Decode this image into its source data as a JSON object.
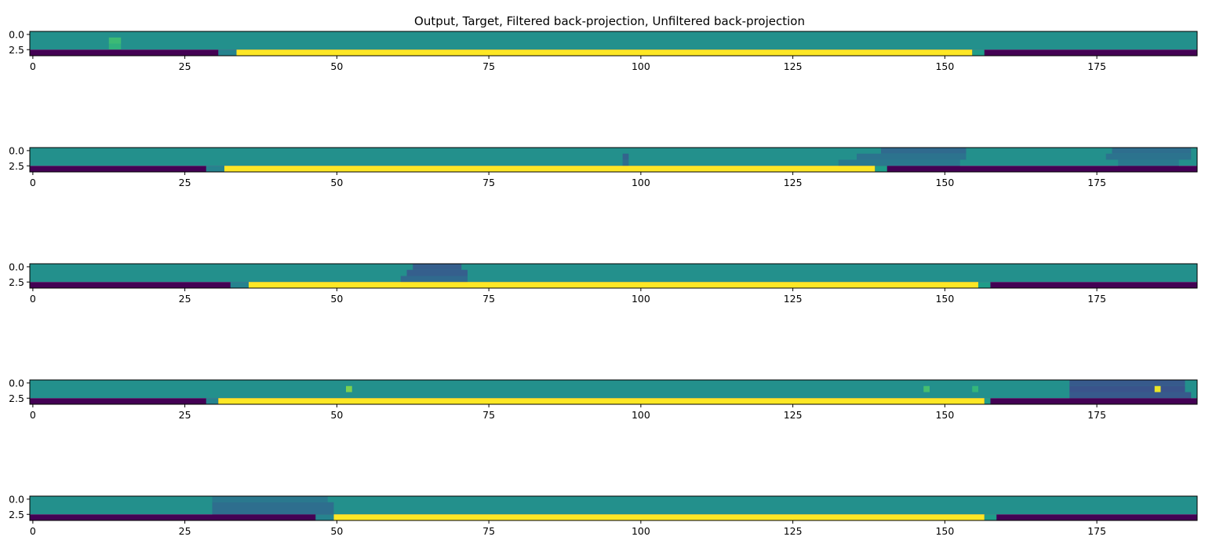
{
  "figure": {
    "title": "Output, Target, Filtered back-projection, Unfiltered back-projection"
  },
  "chart_data": {
    "type": "heatmap",
    "colormap": "viridis",
    "value_range": [
      0,
      1
    ],
    "background_value": 0.5,
    "row_labels": [
      "Output",
      "Target",
      "Filtered back-projection",
      "Unfiltered back-projection"
    ],
    "panels": [
      {
        "xlim": [
          -0.5,
          191.5
        ],
        "ylim": [
          3.5,
          -0.5
        ],
        "xticks": [
          0,
          25,
          50,
          75,
          100,
          125,
          150,
          175
        ],
        "xtick_labels": [
          "0",
          "25",
          "50",
          "75",
          "100",
          "125",
          "150",
          "175"
        ],
        "yticks": [
          0.0,
          2.5
        ],
        "ytick_labels": [
          "0.0",
          "2.5"
        ],
        "features": [
          {
            "row": 1,
            "x": [
              12.5,
              14.5
            ],
            "value": 0.68
          },
          {
            "row": 2,
            "x": [
              12.5,
              14.5
            ],
            "value": 0.64
          }
        ],
        "target_bar": {
          "start": 33.5,
          "end": 154.5,
          "edge_low": 30.5,
          "edge_high": 156.5
        }
      },
      {
        "xlim": [
          -0.5,
          191.5
        ],
        "ylim": [
          3.5,
          -0.5
        ],
        "xticks": [
          0,
          25,
          50,
          75,
          100,
          125,
          150,
          175
        ],
        "xtick_labels": [
          "0",
          "25",
          "50",
          "75",
          "100",
          "125",
          "150",
          "175"
        ],
        "yticks": [
          0.0,
          2.5
        ],
        "ytick_labels": [
          "0.0",
          "2.5"
        ],
        "features": [
          {
            "row": 0,
            "x": [
              139.5,
              153.5
            ],
            "value": 0.34
          },
          {
            "row": 1,
            "x": [
              135.5,
              153.5
            ],
            "value": 0.38
          },
          {
            "row": 2,
            "x": [
              132.5,
              152.5
            ],
            "value": 0.4
          },
          {
            "row": 0,
            "x": [
              177.5,
              190.5
            ],
            "value": 0.36
          },
          {
            "row": 1,
            "x": [
              176.5,
              190.5
            ],
            "value": 0.38
          },
          {
            "row": 2,
            "x": [
              178.5,
              188.5
            ],
            "value": 0.4
          },
          {
            "row": 1,
            "x": [
              97,
              98
            ],
            "value": 0.32
          },
          {
            "row": 2,
            "x": [
              97,
              98
            ],
            "value": 0.36
          }
        ],
        "target_bar": {
          "start": 31.5,
          "end": 138.5,
          "edge_low": 28.5,
          "edge_high": 140.5
        }
      },
      {
        "xlim": [
          -0.5,
          191.5
        ],
        "ylim": [
          3.5,
          -0.5
        ],
        "xticks": [
          0,
          25,
          50,
          75,
          100,
          125,
          150,
          175
        ],
        "xtick_labels": [
          "0",
          "25",
          "50",
          "75",
          "100",
          "125",
          "150",
          "175"
        ],
        "yticks": [
          0.0,
          2.5
        ],
        "ytick_labels": [
          "0.0",
          "2.5"
        ],
        "features": [
          {
            "row": 0,
            "x": [
              62.5,
              70.5
            ],
            "value": 0.3
          },
          {
            "row": 1,
            "x": [
              61.5,
              71.5
            ],
            "value": 0.3
          },
          {
            "row": 2,
            "x": [
              60.5,
              71.5
            ],
            "value": 0.34
          }
        ],
        "target_bar": {
          "start": 35.5,
          "end": 155.5,
          "edge_low": 32.5,
          "edge_high": 157.5
        }
      },
      {
        "xlim": [
          -0.5,
          191.5
        ],
        "ylim": [
          3.5,
          -0.5
        ],
        "xticks": [
          0,
          25,
          50,
          75,
          100,
          125,
          150,
          175
        ],
        "xtick_labels": [
          "0",
          "25",
          "50",
          "75",
          "100",
          "125",
          "150",
          "175"
        ],
        "yticks": [
          0.0,
          2.5
        ],
        "ytick_labels": [
          "0.0",
          "2.5"
        ],
        "features": [
          {
            "row": 0,
            "x": [
              170.5,
              189.5
            ],
            "value": 0.28
          },
          {
            "row": 1,
            "x": [
              170.5,
              189.5
            ],
            "value": 0.26
          },
          {
            "row": 2,
            "x": [
              170.5,
              190.5
            ],
            "value": 0.28
          },
          {
            "row": 1,
            "x": [
              184.5,
              185.5
            ],
            "value": 0.97
          },
          {
            "row": 1,
            "x": [
              51.5,
              52.5
            ],
            "value": 0.8
          },
          {
            "row": 1,
            "x": [
              146.5,
              147.5
            ],
            "value": 0.7
          },
          {
            "row": 1,
            "x": [
              154.5,
              155.5
            ],
            "value": 0.66
          }
        ],
        "target_bar": {
          "start": 30.5,
          "end": 156.5,
          "edge_low": 28.5,
          "edge_high": 157.5
        }
      },
      {
        "xlim": [
          -0.5,
          191.5
        ],
        "ylim": [
          3.5,
          -0.5
        ],
        "xticks": [
          0,
          25,
          50,
          75,
          100,
          125,
          150,
          175
        ],
        "xtick_labels": [
          "0",
          "25",
          "50",
          "75",
          "100",
          "125",
          "150",
          "175"
        ],
        "yticks": [
          0.0,
          2.5
        ],
        "ytick_labels": [
          "0.0",
          "2.5"
        ],
        "features": [
          {
            "row": 0,
            "x": [
              29.5,
              48.5
            ],
            "value": 0.4
          },
          {
            "row": 1,
            "x": [
              29.5,
              49.5
            ],
            "value": 0.36
          },
          {
            "row": 2,
            "x": [
              29.5,
              49.5
            ],
            "value": 0.36
          }
        ],
        "target_bar": {
          "start": 49.5,
          "end": 156.5,
          "edge_low": 46.5,
          "edge_high": 158.5
        }
      }
    ]
  }
}
